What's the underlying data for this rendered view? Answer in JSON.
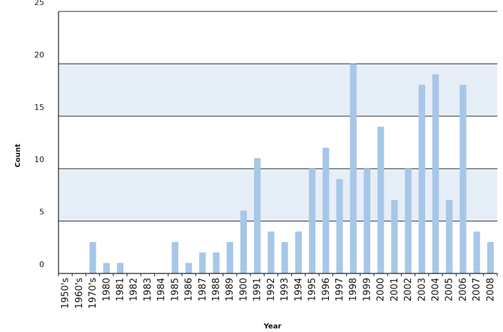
{
  "chart_data": {
    "type": "bar",
    "title": "",
    "xlabel": "Year",
    "ylabel": "Count",
    "ylim": [
      0,
      25
    ],
    "yticks": [
      0,
      5,
      10,
      15,
      20,
      25
    ],
    "grid": "horizontal",
    "banded_background": true,
    "colors": {
      "bar": "#a7c7e8",
      "band": "#e6eef8",
      "grid": "#333333",
      "axis": "#222222"
    },
    "categories": [
      "1950's",
      "1960's",
      "1970's",
      "1980",
      "1981",
      "1982",
      "1983",
      "1984",
      "1985",
      "1986",
      "1987",
      "1988",
      "1989",
      "1900",
      "1991",
      "1992",
      "1993",
      "1994",
      "1995",
      "1996",
      "1997",
      "1998",
      "1999",
      "2000",
      "2001",
      "2002",
      "2003",
      "2004",
      "2005",
      "2006",
      "2007",
      "2008"
    ],
    "values": [
      0,
      0,
      3,
      1,
      1,
      0,
      0,
      0,
      3,
      1,
      2,
      2,
      3,
      6,
      11,
      4,
      3,
      4,
      10,
      12,
      9,
      20,
      10,
      14,
      7,
      10,
      18,
      19,
      7,
      18,
      4,
      3
    ]
  }
}
